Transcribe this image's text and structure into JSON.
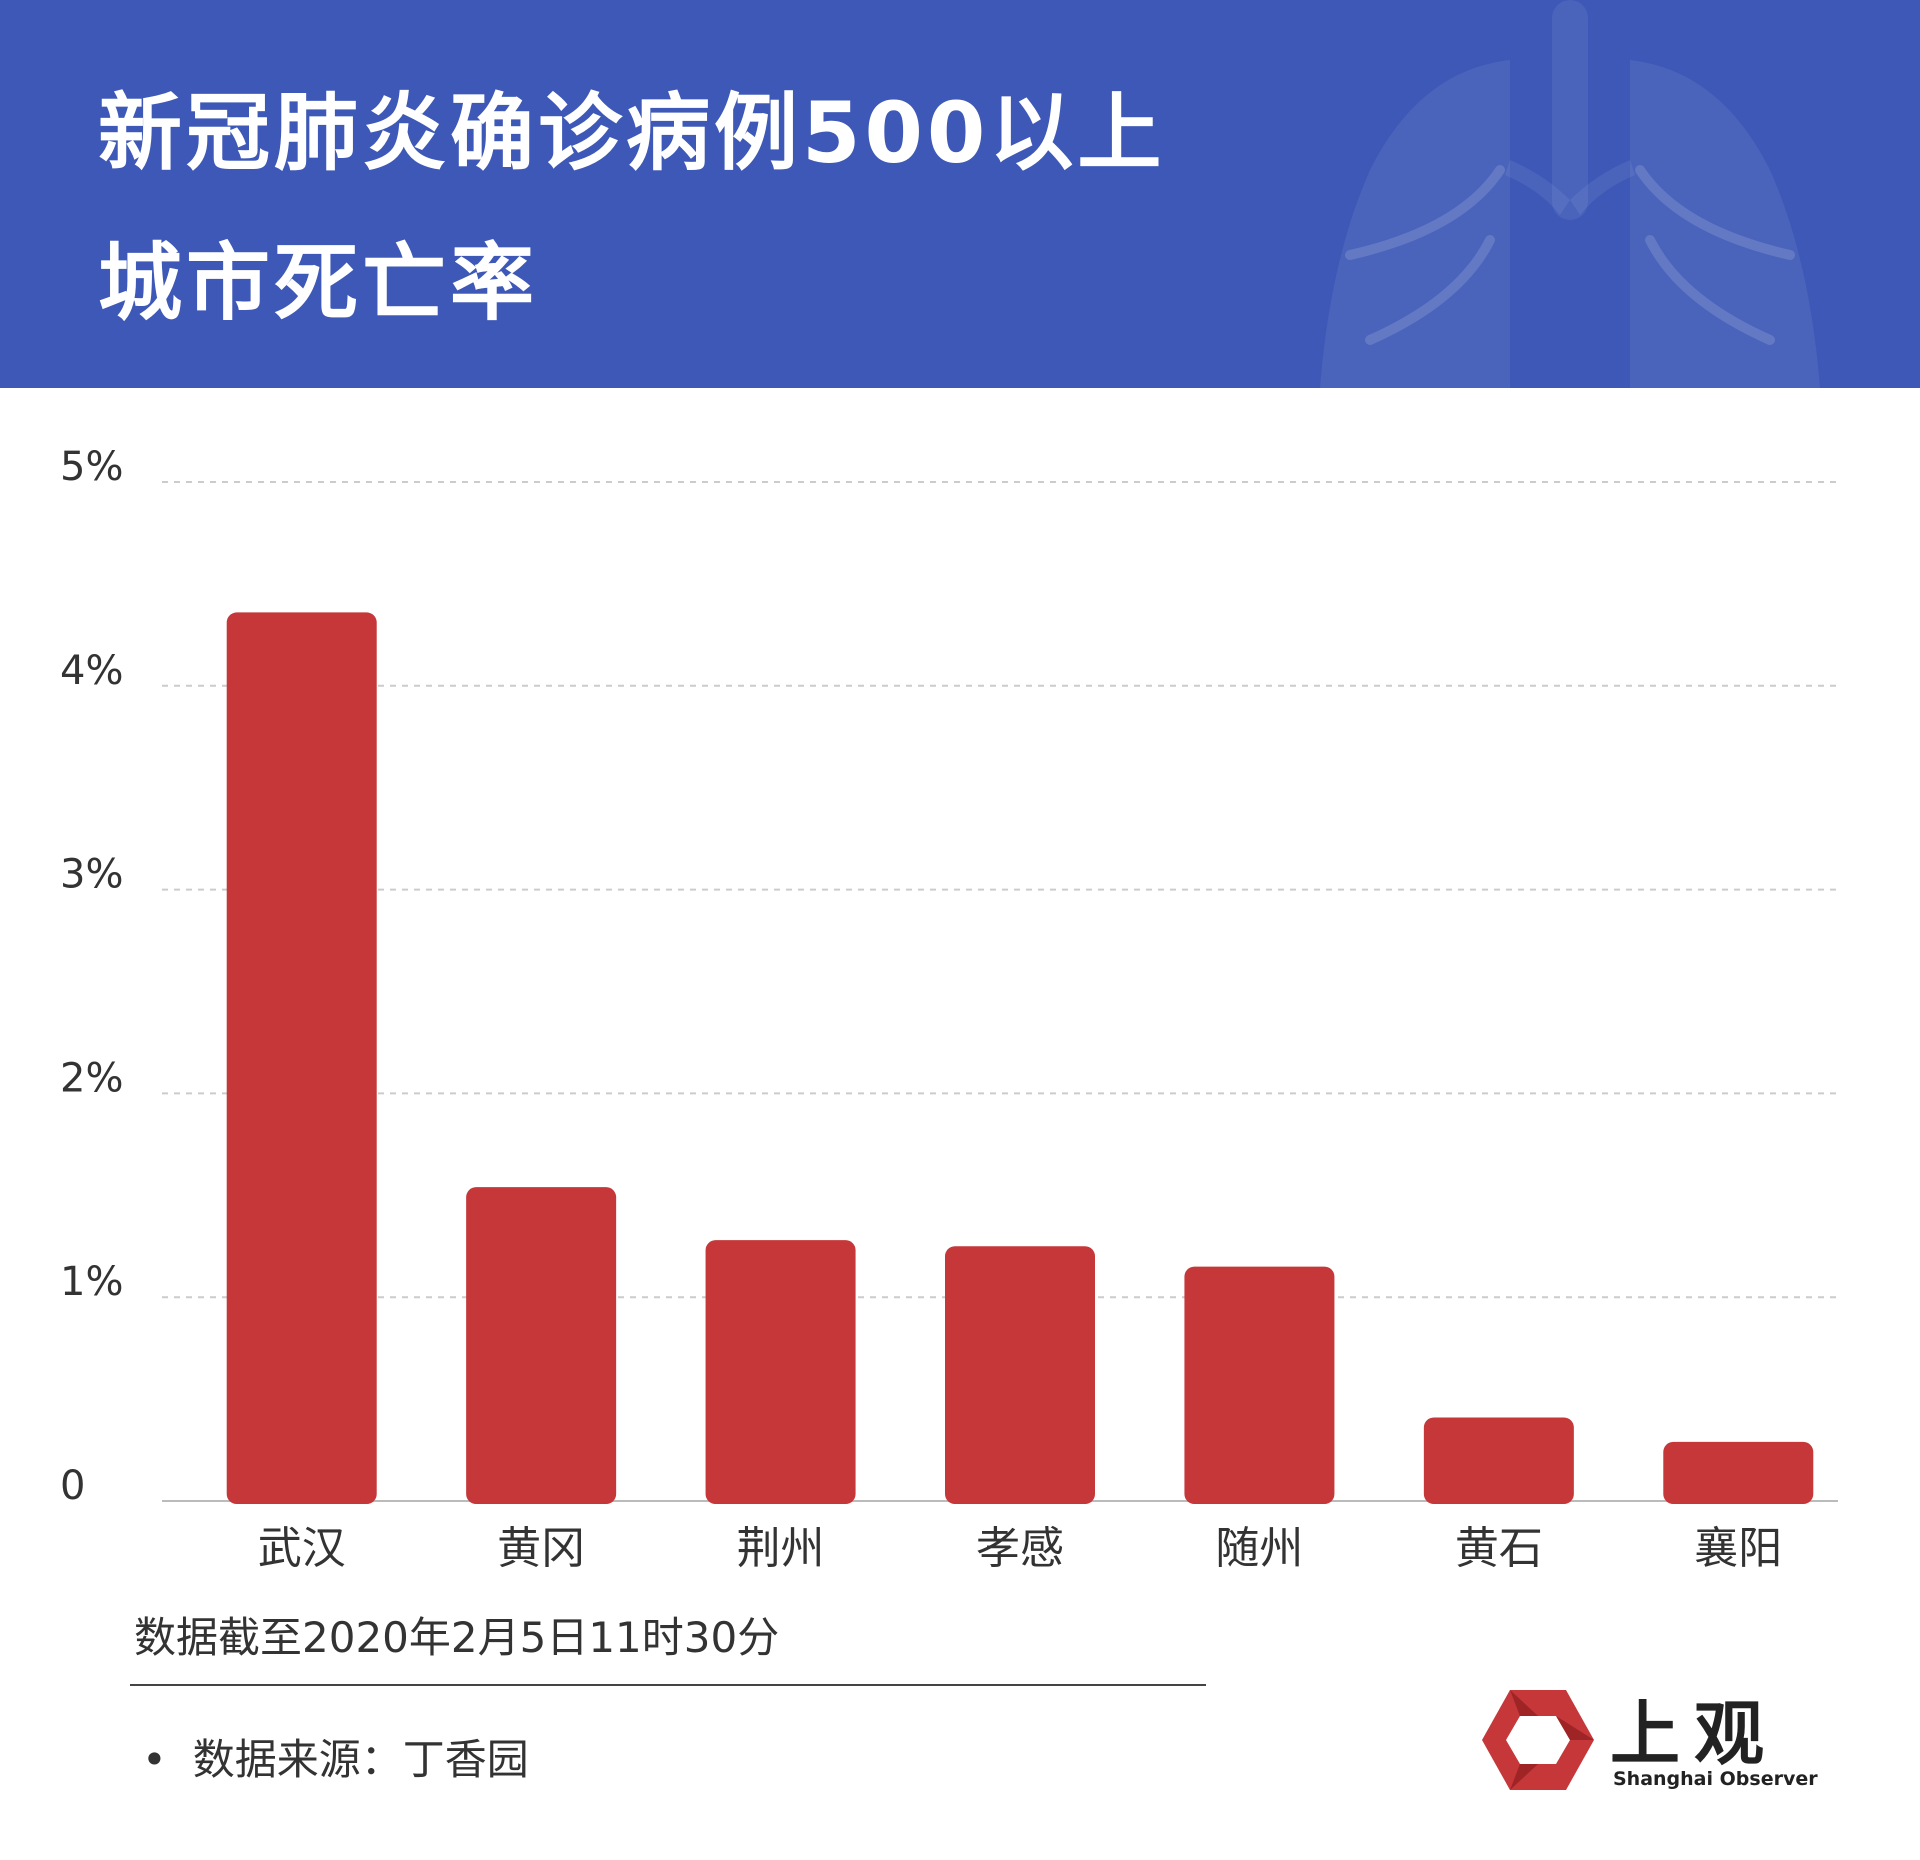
{
  "header": {
    "title_line1": "新冠肺炎确诊病例500以上",
    "title_line2": "城市死亡率",
    "background_color": "#3d58b6",
    "decoration_icon": "lungs-icon"
  },
  "chart_data": {
    "type": "bar",
    "title": "新冠肺炎确诊病例500以上城市死亡率",
    "categories": [
      "武汉",
      "黄冈",
      "荆州",
      "孝感",
      "随州",
      "黄石",
      "襄阳"
    ],
    "values": [
      4.36,
      1.54,
      1.28,
      1.25,
      1.15,
      0.41,
      0.29
    ],
    "unit": "%",
    "ylim": [
      0,
      5
    ],
    "yticks": [
      0,
      1,
      2,
      3,
      4,
      5
    ],
    "ytick_labels": [
      "0",
      "1%",
      "2%",
      "3%",
      "4%",
      "5%"
    ],
    "grid": true,
    "bar_color": "#c53739",
    "grid_color": "#cccccc"
  },
  "footer": {
    "note": "数据截至2020年2月5日11时30分",
    "source_bullet": "•",
    "source": "数据来源：丁香园"
  },
  "logo": {
    "name_cn": "上观",
    "name_en": "Shanghai Observer",
    "color": "#c53739"
  }
}
